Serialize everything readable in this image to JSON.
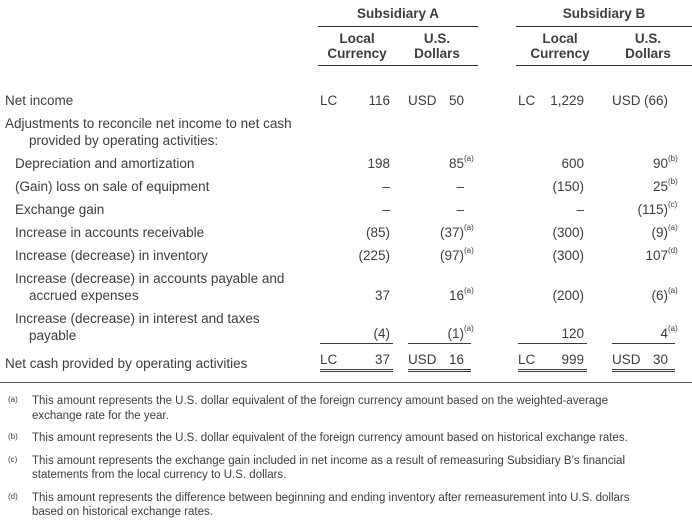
{
  "table": {
    "groups": {
      "a": "Subsidiary A",
      "b": "Subsidiary B"
    },
    "subheaders": {
      "local": "Local Currency",
      "usd": "U.S. Dollars"
    },
    "rows": [
      {
        "label": "Net income",
        "a_lc_pfx": "LC",
        "a_lc": "116",
        "a_usd_pfx": "USD",
        "a_usd": "50",
        "b_lc_pfx": "LC",
        "b_lc": "1,229",
        "b_usd_pfx": "USD",
        "b_usd": "(66)"
      },
      {
        "label": "Adjustments to reconcile net income to net cash",
        "label2": "provided by operating activities:"
      },
      {
        "label": "Depreciation and amortization",
        "a_lc": "198",
        "a_usd": "85",
        "a_usd_sup": "(a)",
        "b_lc": "600",
        "b_usd": "90",
        "b_usd_sup": "(b)"
      },
      {
        "label": "(Gain) loss on sale of equipment",
        "a_lc": "–",
        "a_usd": "–",
        "b_lc": "(150)",
        "b_usd": "25",
        "b_usd_sup": "(b)"
      },
      {
        "label": "Exchange gain",
        "a_lc": "–",
        "a_usd": "–",
        "b_lc": "–",
        "b_usd": "(115)",
        "b_usd_sup": "(c)"
      },
      {
        "label": "Increase in accounts receivable",
        "a_lc": "(85)",
        "a_usd": "(37)",
        "a_usd_sup": "(a)",
        "b_lc": "(300)",
        "b_usd": "(9)",
        "b_usd_sup": "(a)"
      },
      {
        "label": "Increase (decrease) in inventory",
        "a_lc": "(225)",
        "a_usd": "(97)",
        "a_usd_sup": "(a)",
        "b_lc": "(300)",
        "b_usd": "107",
        "b_usd_sup": "(d)"
      },
      {
        "label": "Increase (decrease) in accounts payable and",
        "label2": "accrued expenses",
        "a_lc": "37",
        "a_usd": "16",
        "a_usd_sup": "(a)",
        "b_lc": "(200)",
        "b_usd": "(6)",
        "b_usd_sup": "(a)"
      },
      {
        "label": "Increase (decrease) in interest and taxes",
        "label2": "payable",
        "a_lc": "(4)",
        "a_usd": "(1)",
        "a_usd_sup": "(a)",
        "b_lc": "120",
        "b_usd": "4",
        "b_usd_sup": "(a)"
      },
      {
        "label": "Net cash provided by operating activities",
        "a_lc_pfx": "LC",
        "a_lc": "37",
        "a_usd_pfx": "USD",
        "a_usd": "16",
        "b_lc_pfx": "LC",
        "b_lc": "999",
        "b_usd_pfx": "USD",
        "b_usd": "30"
      }
    ]
  },
  "footnotes": [
    {
      "marker": "(a)",
      "text": "This amount represents the U.S. dollar equivalent of the foreign currency amount based on the weighted-average exchange rate for the year."
    },
    {
      "marker": "(b)",
      "text": "This amount represents the U.S. dollar equivalent of the foreign currency amount based on historical exchange rates."
    },
    {
      "marker": "(c)",
      "text": "This amount represents the exchange gain included in net income as a result of remeasuring Subsidiary B’s financial statements from the local currency to U.S. dollars."
    },
    {
      "marker": "(d)",
      "text": "This amount represents the difference between beginning and ending inventory after remeasurement into U.S. dollars based on historical exchange rates."
    }
  ]
}
